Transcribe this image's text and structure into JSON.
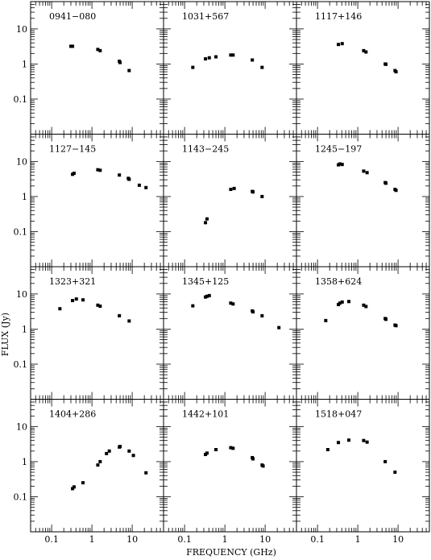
{
  "figure": {
    "xlabel": "FREQUENCY (GHz)",
    "ylabel": "FLUX (Jy)",
    "x_tick_labels": [
      "0.1",
      "1",
      "10"
    ],
    "y_tick_labels": [
      "0.1",
      "1",
      "10"
    ]
  },
  "chart_data": [
    {
      "type": "scatter",
      "title": "0941−080",
      "xscale": "log",
      "yscale": "log",
      "xlim": [
        0.03,
        60
      ],
      "ylim": [
        0.01,
        60
      ],
      "x": [
        0.3,
        0.33,
        1.4,
        1.6,
        4.8,
        5.0,
        8.4
      ],
      "y": [
        3.2,
        3.2,
        2.6,
        2.4,
        1.2,
        1.1,
        0.65
      ]
    },
    {
      "type": "scatter",
      "title": "1031+567",
      "xscale": "log",
      "yscale": "log",
      "xlim": [
        0.03,
        60
      ],
      "ylim": [
        0.01,
        60
      ],
      "x": [
        0.16,
        0.33,
        0.41,
        0.6,
        1.4,
        1.6,
        4.8,
        8.4
      ],
      "y": [
        0.8,
        1.4,
        1.5,
        1.6,
        1.8,
        1.8,
        1.3,
        0.8
      ]
    },
    {
      "type": "scatter",
      "title": "1117+146",
      "xscale": "log",
      "yscale": "log",
      "xlim": [
        0.03,
        60
      ],
      "ylim": [
        0.01,
        60
      ],
      "x": [
        0.33,
        0.41,
        1.4,
        1.6,
        4.8,
        5.0,
        8.4,
        8.9
      ],
      "y": [
        3.6,
        3.8,
        2.4,
        2.2,
        1.0,
        0.98,
        0.65,
        0.6
      ]
    },
    {
      "type": "scatter",
      "title": "1127−145",
      "xscale": "log",
      "yscale": "log",
      "xlim": [
        0.03,
        60
      ],
      "ylim": [
        0.01,
        60
      ],
      "x": [
        0.33,
        0.36,
        1.4,
        1.6,
        4.8,
        8.0,
        8.4,
        15,
        22
      ],
      "y": [
        4.3,
        4.6,
        5.8,
        5.6,
        4.1,
        3.3,
        3.1,
        2.1,
        1.8
      ]
    },
    {
      "type": "scatter",
      "title": "1143−245",
      "xscale": "log",
      "yscale": "log",
      "xlim": [
        0.03,
        60
      ],
      "ylim": [
        0.01,
        60
      ],
      "x": [
        0.33,
        0.36,
        1.4,
        1.7,
        4.8,
        5.0,
        8.4
      ],
      "y": [
        0.18,
        0.23,
        1.6,
        1.7,
        1.4,
        1.35,
        1.0
      ]
    },
    {
      "type": "scatter",
      "title": "1245−197",
      "xscale": "log",
      "yscale": "log",
      "xlim": [
        0.03,
        60
      ],
      "ylim": [
        0.01,
        60
      ],
      "x": [
        0.33,
        0.36,
        0.41,
        1.4,
        1.7,
        4.8,
        5.0,
        8.4,
        8.9
      ],
      "y": [
        8.0,
        8.5,
        8.2,
        5.3,
        4.8,
        2.5,
        2.4,
        1.6,
        1.5
      ]
    },
    {
      "type": "scatter",
      "title": "1323+321",
      "xscale": "log",
      "yscale": "log",
      "xlim": [
        0.03,
        60
      ],
      "ylim": [
        0.01,
        60
      ],
      "x": [
        0.16,
        0.33,
        0.41,
        0.6,
        1.4,
        1.6,
        4.8,
        8.4
      ],
      "y": [
        3.8,
        6.5,
        7.2,
        6.8,
        4.8,
        4.5,
        2.4,
        1.7
      ]
    },
    {
      "type": "scatter",
      "title": "1345+125",
      "xscale": "log",
      "yscale": "log",
      "xlim": [
        0.03,
        60
      ],
      "ylim": [
        0.01,
        60
      ],
      "x": [
        0.16,
        0.33,
        0.36,
        0.41,
        1.4,
        1.6,
        4.8,
        5.0,
        8.4,
        22
      ],
      "y": [
        4.6,
        8.2,
        8.6,
        9.0,
        5.5,
        5.2,
        3.3,
        3.1,
        2.4,
        1.1
      ]
    },
    {
      "type": "scatter",
      "title": "1358+624",
      "xscale": "log",
      "yscale": "log",
      "xlim": [
        0.03,
        60
      ],
      "ylim": [
        0.01,
        60
      ],
      "x": [
        0.16,
        0.33,
        0.36,
        0.41,
        0.6,
        1.4,
        1.6,
        4.8,
        5.0,
        8.4,
        8.9
      ],
      "y": [
        1.75,
        5.0,
        5.5,
        5.9,
        6.1,
        4.8,
        4.4,
        2.0,
        1.9,
        1.3,
        1.25
      ]
    },
    {
      "type": "scatter",
      "title": "1404+286",
      "xscale": "log",
      "yscale": "log",
      "xlim": [
        0.03,
        60
      ],
      "ylim": [
        0.01,
        60
      ],
      "x": [
        0.33,
        0.36,
        0.6,
        1.4,
        1.6,
        2.3,
        2.7,
        4.8,
        5.0,
        8.4,
        10.7,
        22
      ],
      "y": [
        0.17,
        0.19,
        0.25,
        0.8,
        1.0,
        1.7,
        2.0,
        2.6,
        2.7,
        2.0,
        1.5,
        0.48
      ]
    },
    {
      "type": "scatter",
      "title": "1442+101",
      "xscale": "log",
      "yscale": "log",
      "xlim": [
        0.03,
        60
      ],
      "ylim": [
        0.01,
        60
      ],
      "x": [
        0.33,
        0.36,
        0.6,
        1.4,
        1.6,
        4.8,
        5.0,
        8.4,
        8.9
      ],
      "y": [
        1.6,
        1.75,
        2.2,
        2.5,
        2.4,
        1.3,
        1.2,
        0.8,
        0.75
      ]
    },
    {
      "type": "scatter",
      "title": "1518+047",
      "xscale": "log",
      "yscale": "log",
      "xlim": [
        0.03,
        60
      ],
      "ylim": [
        0.01,
        60
      ],
      "x": [
        0.18,
        0.33,
        0.6,
        1.4,
        1.7,
        4.8,
        8.4
      ],
      "y": [
        2.2,
        3.5,
        4.1,
        4.0,
        3.6,
        1.0,
        0.5
      ]
    }
  ]
}
